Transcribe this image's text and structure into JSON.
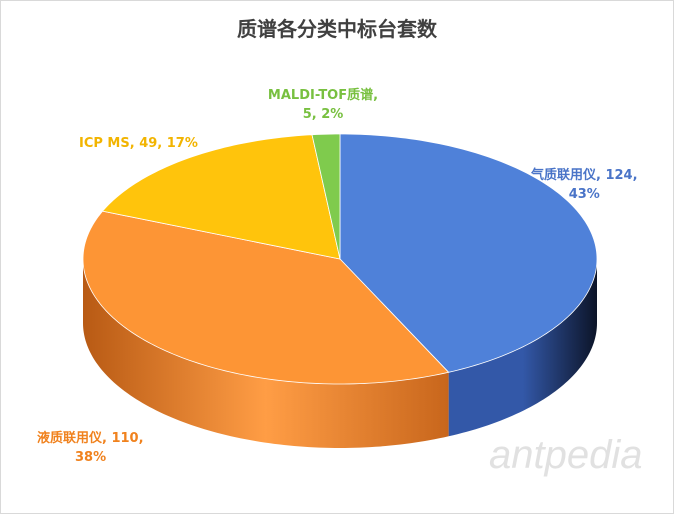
{
  "chart_data": {
    "type": "pie",
    "style": "3d",
    "title": "质谱各分类中标台套数",
    "slices": [
      {
        "name": "气质联用仪",
        "value": 124,
        "percent": 43,
        "label_line1": "气质联用仪, 124,",
        "label_line2": "43%",
        "color": "#4f81d9",
        "side_color": "#203a70"
      },
      {
        "name": "液质联用仪",
        "value": 110,
        "percent": 38,
        "label_line1": "液质联用仪, 110,",
        "label_line2": "38%",
        "color": "#fd9535",
        "side_color": "#c8661c"
      },
      {
        "name": "ICP MS",
        "value": 49,
        "percent": 17,
        "label_line1": "ICP MS, 49, 17%",
        "label_line2": "",
        "color": "#ffc40c",
        "side_color": "#c99600"
      },
      {
        "name": "MALDI-TOF质谱",
        "value": 5,
        "percent": 2,
        "label_line1": "MALDI-TOF质谱,",
        "label_line2": "5, 2%",
        "color": "#7fcb4d",
        "side_color": "#5a9a30"
      }
    ],
    "legend": "none",
    "watermark": "antpedia"
  }
}
